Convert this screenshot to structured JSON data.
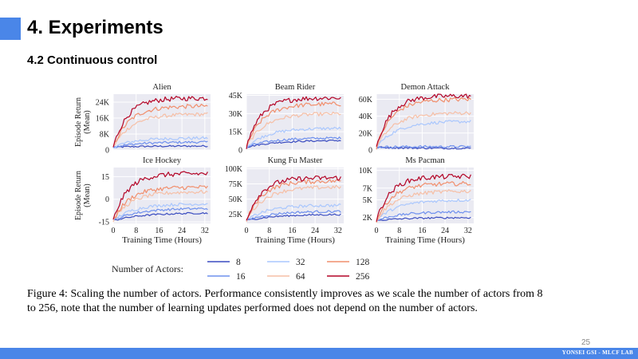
{
  "slide": {
    "title": "4. Experiments",
    "subtitle": "4.2 Continuous control",
    "page_number": "25",
    "footer": "YONSEI GSI - MLCF LAB",
    "accent_color": "#4a86e8"
  },
  "caption": {
    "label": "Figure 4:",
    "text": "Scaling the number of actors. Performance consistently improves as we scale the number of actors from 8 to 256, note that the number of learning updates performed does not depend on the number of actors."
  },
  "chart_data": {
    "type": "line",
    "ylabel": "Episode Return (Mean)",
    "xlabel": "Training Time (Hours)",
    "x_ticks": [
      "0",
      "8",
      "16",
      "24",
      "32"
    ],
    "xlim": [
      0,
      34
    ],
    "legend": {
      "title": "Number of Actors:",
      "entries": [
        {
          "label": "8",
          "color": "#3a4cc0"
        },
        {
          "label": "32",
          "color": "#aac7fd"
        },
        {
          "label": "128",
          "color": "#f18f6d"
        },
        {
          "label": "16",
          "color": "#6e90ee"
        },
        {
          "label": "64",
          "color": "#f6bfa6"
        },
        {
          "label": "256",
          "color": "#b40426"
        }
      ]
    },
    "series_names": [
      "8",
      "16",
      "32",
      "64",
      "128",
      "256"
    ],
    "panels": [
      {
        "title": "Alien",
        "yticks": [
          "0",
          "8K",
          "16K",
          "24K"
        ],
        "ylim": [
          0,
          28000
        ],
        "finals": [
          2000,
          4000,
          6000,
          18000,
          22000,
          26000
        ]
      },
      {
        "title": "Beam Rider",
        "yticks": [
          "0",
          "15K",
          "30K",
          "45K"
        ],
        "ylim": [
          0,
          46000
        ],
        "finals": [
          8000,
          10000,
          18000,
          30000,
          38000,
          43000
        ]
      },
      {
        "title": "Demon Attack",
        "yticks": [
          "0",
          "20K",
          "40K",
          "60K"
        ],
        "ylim": [
          0,
          66000
        ],
        "finals": [
          2000,
          4000,
          34000,
          44000,
          60000,
          64000
        ]
      },
      {
        "title": "Ice Hockey",
        "yticks": [
          "-15",
          "0",
          "15"
        ],
        "ylim": [
          -16,
          21
        ],
        "finals": [
          -9,
          -6,
          -3,
          5,
          8,
          17
        ]
      },
      {
        "title": "Kung Fu Master",
        "yticks": [
          "25K",
          "50K",
          "75K",
          "100K"
        ],
        "ylim": [
          10000,
          102000
        ],
        "finals": [
          25000,
          30000,
          40000,
          70000,
          80000,
          85000
        ]
      },
      {
        "title": "Ms Pacman",
        "yticks": [
          "2K",
          "5K",
          "7K",
          "10K"
        ],
        "ylim": [
          1000,
          10500
        ],
        "finals": [
          2000,
          3000,
          5000,
          6500,
          7800,
          9000
        ]
      }
    ]
  }
}
